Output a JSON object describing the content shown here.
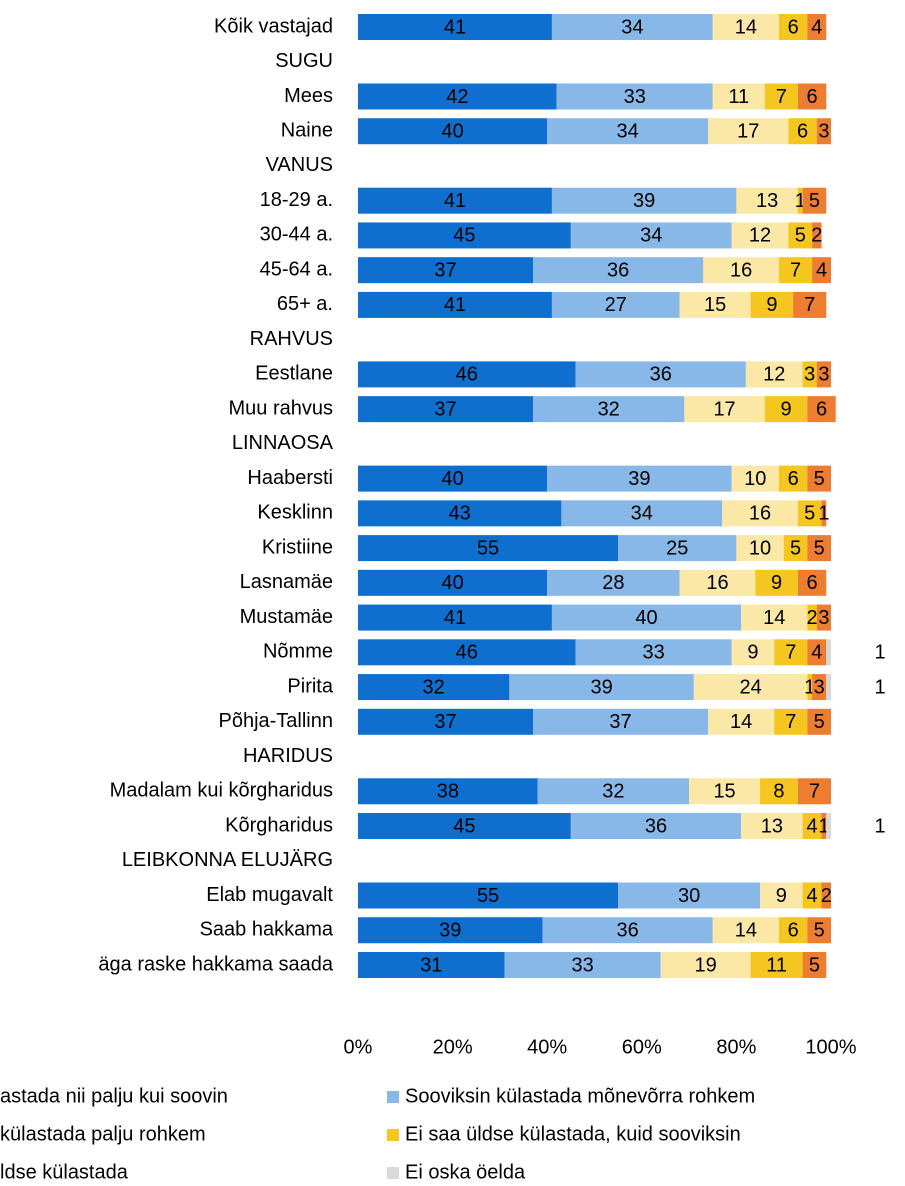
{
  "chart_data": {
    "type": "stacked-bar-horizontal",
    "categories": [
      "Kõik vastajad",
      "SUGU",
      "Mees",
      "Naine",
      "VANUS",
      "18-29 a.",
      "30-44 a.",
      "45-64 a.",
      "65+ a.",
      "RAHVUS",
      "Eestlane",
      "Muu rahvus",
      "LINNAOSA",
      "Haabersti",
      "Kesklinn",
      "Kristiine",
      "Lasnamäe",
      "Mustamäe",
      "Nõmme",
      "Pirita",
      "Põhja-Tallinn",
      "HARIDUS",
      "Madalam kui kõrgharidus",
      "Kõrgharidus",
      "LEIBKONNA ELUJÄRG",
      "Elab mugavalt",
      "Saab hakkama",
      "äga raske hakkama saada"
    ],
    "series": [
      {
        "name": "astada nii palju kui soovin",
        "color": "#0f6fcf",
        "values": [
          41,
          null,
          42,
          40,
          null,
          41,
          45,
          37,
          41,
          null,
          46,
          37,
          null,
          40,
          43,
          55,
          40,
          41,
          46,
          32,
          37,
          null,
          38,
          45,
          null,
          55,
          39,
          31
        ]
      },
      {
        "name": "Sooviksin külastada mõnevõrra rohkem",
        "color": "#88b8e8",
        "values": [
          34,
          null,
          33,
          34,
          null,
          39,
          34,
          36,
          27,
          null,
          36,
          32,
          null,
          39,
          34,
          25,
          28,
          40,
          33,
          39,
          37,
          null,
          32,
          36,
          null,
          30,
          36,
          33
        ]
      },
      {
        "name": "külastada palju rohkem",
        "color": "#fbe8a6",
        "values": [
          14,
          null,
          11,
          17,
          null,
          13,
          12,
          16,
          15,
          null,
          12,
          17,
          null,
          10,
          16,
          10,
          16,
          14,
          9,
          24,
          14,
          null,
          15,
          13,
          null,
          9,
          14,
          19
        ]
      },
      {
        "name": "Ei saa üldse külastada, kuid sooviksin",
        "color": "#f5c520",
        "values": [
          6,
          null,
          7,
          6,
          null,
          1,
          5,
          7,
          9,
          null,
          3,
          9,
          null,
          6,
          5,
          5,
          9,
          2,
          7,
          1,
          7,
          null,
          8,
          4,
          null,
          4,
          6,
          11
        ]
      },
      {
        "name": "ldse külastada",
        "color": "#ed7d31",
        "values": [
          4,
          null,
          6,
          3,
          null,
          5,
          2,
          4,
          7,
          null,
          3,
          6,
          null,
          5,
          1,
          5,
          6,
          3,
          4,
          3,
          5,
          null,
          7,
          1,
          null,
          2,
          5,
          5
        ]
      },
      {
        "name": "Ei oska öelda",
        "color": "#d9d9d9",
        "values": [
          null,
          null,
          null,
          null,
          null,
          null,
          null,
          null,
          null,
          null,
          null,
          null,
          null,
          null,
          null,
          null,
          null,
          null,
          1,
          1,
          null,
          null,
          null,
          1,
          null,
          null,
          null,
          null
        ]
      }
    ],
    "xlim": [
      0,
      100
    ],
    "xticks": [
      {
        "value": 0,
        "label": "0%"
      },
      {
        "value": 20,
        "label": "20%"
      },
      {
        "value": 40,
        "label": "40%"
      },
      {
        "value": 60,
        "label": "60%"
      },
      {
        "value": 80,
        "label": "80%"
      },
      {
        "value": 100,
        "label": "100%"
      }
    ]
  }
}
